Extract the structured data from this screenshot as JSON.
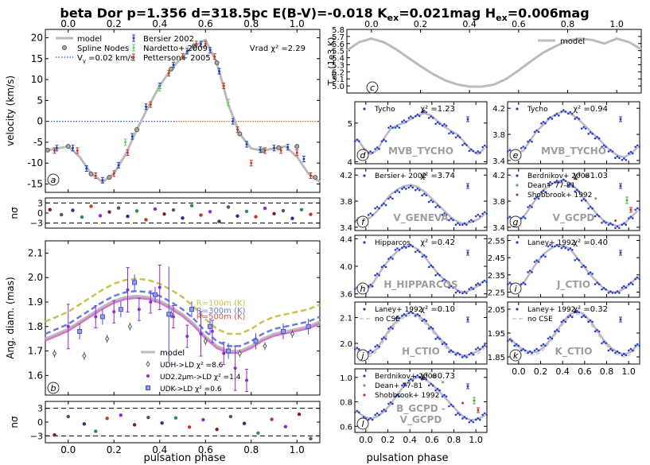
{
  "title": "beta Dor p=1.356 d=318.5pc E(B-V)=-0.018 K",
  "title_sub1": "ex",
  "title_mid": "=0.021mag H",
  "title_sub2": "ex",
  "title_end": "=0.006mag",
  "chart_data": [
    {
      "id": "a",
      "type": "scatter",
      "panel_letter": "a",
      "ylabel": "velocity (km/s)",
      "xlim": [
        -0.1,
        1.1
      ],
      "ylim": [
        -17,
        22
      ],
      "yticks": [
        -15,
        -10,
        -5,
        0,
        5,
        10,
        15,
        20
      ],
      "xticks_top": [
        0.0,
        0.2,
        0.4,
        0.6,
        0.8,
        1.0
      ],
      "xtick_labels_top": [
        "0.0",
        "0.2",
        "0.4",
        "0.6",
        "0.8",
        "1.0"
      ],
      "annotation": "Vrad χ² =2.29",
      "legend": [
        "model",
        "Spline Nodes",
        "V =0.02 km/s",
        "Bersier 2002",
        "Nardetto+ 2009",
        "Petterson+ 2005"
      ],
      "legend_subscript": "γ",
      "model_x": [
        -0.1,
        -0.05,
        0.0,
        0.05,
        0.1,
        0.15,
        0.2,
        0.25,
        0.3,
        0.35,
        0.4,
        0.45,
        0.5,
        0.55,
        0.6,
        0.65,
        0.7,
        0.75,
        0.8,
        0.85,
        0.9,
        0.95,
        1.0,
        1.05,
        1.1
      ],
      "model_y": [
        -7.0,
        -6.5,
        -6.0,
        -8.5,
        -12.5,
        -14.5,
        -12.5,
        -8.0,
        -2.0,
        3.5,
        8.5,
        12.5,
        15.5,
        18.0,
        19.5,
        14.0,
        4.0,
        -3.0,
        -6.5,
        -7.0,
        -6.5,
        -6.0,
        -8.5,
        -12.5,
        -14.5
      ],
      "nodes_x": [
        -0.09,
        0.0,
        0.1,
        0.18,
        0.3,
        0.45,
        0.55,
        0.65,
        0.75,
        0.85,
        0.92,
        1.0,
        1.08
      ],
      "nodes_y": [
        -6.9,
        -6.0,
        -12.6,
        -13.4,
        -2.0,
        12.5,
        18.0,
        14.0,
        -3.0,
        -7.0,
        -6.3,
        -6.0,
        -13.4
      ],
      "bersier_x": [
        -0.05,
        0.02,
        0.08,
        0.15,
        0.22,
        0.28,
        0.34,
        0.4,
        0.46,
        0.52,
        0.58,
        0.62,
        0.66,
        0.72,
        0.78,
        0.84,
        0.9,
        0.96,
        1.03
      ],
      "bersier_y": [
        -6.4,
        -6.4,
        -11.3,
        -14.1,
        -10.5,
        -3.6,
        3.5,
        8.5,
        13.5,
        16.8,
        18.5,
        17.0,
        12.0,
        0.0,
        -5.5,
        -6.8,
        -6.4,
        -6.2,
        -9.0
      ],
      "nardetto_x": [
        0.25,
        0.4,
        0.55,
        0.7
      ],
      "nardetto_y": [
        -5.0,
        8.0,
        17.8,
        4.5
      ],
      "petterson_x": [
        -0.06,
        0.04,
        0.12,
        0.2,
        0.26,
        0.36,
        0.44,
        0.5,
        0.56,
        0.6,
        0.64,
        0.68,
        0.74,
        0.8,
        0.86,
        0.93,
        1.0,
        1.06
      ],
      "petterson_y": [
        -7.0,
        -7.0,
        -13.0,
        -12.5,
        -7.5,
        4.0,
        11.5,
        15.5,
        18.5,
        18.5,
        15.5,
        8.5,
        -2.0,
        -10.0,
        -7.0,
        -7.0,
        -7.5,
        -13.0
      ]
    },
    {
      "id": "a_res",
      "type": "scatter",
      "ylabel": "nσ",
      "ylim": [
        -4.5,
        4.5
      ],
      "yticks": [
        -3,
        0,
        3
      ],
      "ytick_labels": [
        "−3",
        "0",
        "3"
      ],
      "x": [
        -0.08,
        -0.03,
        0.02,
        0.06,
        0.1,
        0.14,
        0.18,
        0.22,
        0.26,
        0.3,
        0.34,
        0.38,
        0.42,
        0.46,
        0.5,
        0.54,
        0.58,
        0.62,
        0.66,
        0.7,
        0.74,
        0.78,
        0.82,
        0.86,
        0.9,
        0.94,
        0.98,
        1.02,
        1.06
      ],
      "y": [
        1.0,
        -0.5,
        0.8,
        -1.2,
        2.0,
        -0.8,
        0.3,
        1.5,
        -1.0,
        0.6,
        -2.0,
        1.2,
        -0.3,
        0.9,
        -1.5,
        2.2,
        -0.6,
        0.4,
        -2.5,
        1.8,
        -0.9,
        0.5,
        -1.1,
        1.4,
        -0.2,
        0.7,
        -1.6,
        1.0,
        -0.4
      ]
    },
    {
      "id": "b",
      "type": "line",
      "panel_letter": "b",
      "ylabel": "Ang. diam. (mas)",
      "xlim": [
        -0.1,
        1.1
      ],
      "ylim": [
        1.52,
        2.15
      ],
      "yticks": [
        1.6,
        1.7,
        1.8,
        1.9,
        2.0,
        2.1
      ],
      "ytick_labels": [
        "1.6",
        "1.7",
        "1.8",
        "1.9",
        "2.0",
        "2.1"
      ],
      "legend": [
        "model",
        "UDH->LD χ² =8.6",
        "UD2.2μm->LD χ² =1.4",
        "UDK->LD χ² =0.6"
      ],
      "annotations": [
        "R=100m (K)",
        "R=300m (K)",
        "R=500m (K)"
      ],
      "model_x": [
        -0.1,
        -0.05,
        0.0,
        0.05,
        0.1,
        0.15,
        0.2,
        0.25,
        0.3,
        0.35,
        0.4,
        0.45,
        0.5,
        0.55,
        0.6,
        0.65,
        0.7,
        0.75,
        0.8,
        0.85,
        0.9,
        0.95,
        1.0,
        1.05,
        1.1
      ],
      "model_y": [
        1.75,
        1.77,
        1.79,
        1.82,
        1.85,
        1.88,
        1.905,
        1.92,
        1.925,
        1.92,
        1.905,
        1.88,
        1.85,
        1.81,
        1.76,
        1.72,
        1.7,
        1.7,
        1.72,
        1.75,
        1.77,
        1.78,
        1.79,
        1.8,
        1.82
      ],
      "pts_h_x": [
        -0.06,
        0.07,
        0.17,
        0.27,
        0.45,
        0.6,
        0.75,
        0.86,
        0.98
      ],
      "pts_h_y": [
        1.69,
        1.68,
        1.75,
        1.8,
        1.85,
        1.74,
        1.69,
        1.72,
        1.77
      ],
      "pts_22_x": [
        0.0,
        0.12,
        0.2,
        0.26,
        0.31,
        0.36,
        0.4,
        0.46,
        0.52,
        0.58,
        0.63,
        0.68,
        0.73,
        0.78
      ],
      "pts_22_y": [
        1.8,
        1.84,
        1.86,
        1.95,
        1.87,
        1.9,
        1.96,
        1.84,
        1.76,
        1.77,
        1.78,
        1.69,
        1.63,
        1.58
      ],
      "pts_k_x": [
        0.05,
        0.15,
        0.23,
        0.29,
        0.38,
        0.44,
        0.54,
        0.62,
        0.7,
        0.82,
        0.94,
        1.05
      ],
      "pts_k_y": [
        1.78,
        1.84,
        1.87,
        1.98,
        1.93,
        1.85,
        1.87,
        1.8,
        1.7,
        1.74,
        1.78,
        1.8
      ]
    },
    {
      "id": "b_res",
      "type": "scatter",
      "ylabel": "nσ",
      "ylim": [
        -4.5,
        4.5
      ],
      "yticks": [
        -3,
        0,
        3
      ],
      "ytick_labels": [
        "−3",
        "0",
        "3"
      ],
      "xticks": [
        0.0,
        0.2,
        0.4,
        0.6,
        0.8,
        1.0
      ],
      "xtick_labels": [
        "0.0",
        "0.2",
        "0.4",
        "0.6",
        "0.8",
        "1.0"
      ],
      "xlabel": "pulsation phase",
      "x": [
        -0.06,
        0.0,
        0.07,
        0.12,
        0.17,
        0.23,
        0.29,
        0.35,
        0.41,
        0.47,
        0.53,
        0.59,
        0.65,
        0.71,
        0.77,
        0.83,
        0.89,
        0.95,
        1.01,
        1.06
      ],
      "y": [
        -2.8,
        1.2,
        -0.4,
        -2.0,
        0.8,
        1.5,
        -0.6,
        1.0,
        -0.2,
        0.9,
        -1.1,
        0.5,
        -1.6,
        1.2,
        -0.3,
        -2.4,
        0.6,
        -1.0,
        1.7,
        -3.6
      ]
    },
    {
      "id": "c",
      "type": "line",
      "panel_letter": "c",
      "ylabel": "T",
      "ylabel_sub": "eff",
      "ylabel_tail": " (1e3 K)",
      "xlim": [
        -0.1,
        1.1
      ],
      "ylim": [
        4.9,
        5.8
      ],
      "yticks": [
        5.0,
        5.1,
        5.2,
        5.3,
        5.4,
        5.5,
        5.6,
        5.7,
        5.8
      ],
      "ytick_labels": [
        "5.0",
        "5.1",
        "5.2",
        "5.3",
        "5.4",
        "5.5",
        "5.6",
        "5.7",
        "5.8"
      ],
      "xticks_top": [
        0.0,
        0.2,
        0.4,
        0.6,
        0.8,
        1.0
      ],
      "xtick_labels_top": [
        "0.0",
        "0.2",
        "0.4",
        "0.6",
        "0.8",
        "1.0"
      ],
      "legend": [
        "model"
      ],
      "model_x": [
        -0.1,
        -0.05,
        0.0,
        0.05,
        0.1,
        0.15,
        0.2,
        0.25,
        0.3,
        0.35,
        0.4,
        0.45,
        0.5,
        0.55,
        0.6,
        0.65,
        0.7,
        0.75,
        0.8,
        0.85,
        0.9,
        0.95,
        1.0,
        1.05,
        1.1
      ],
      "model_y": [
        5.5,
        5.62,
        5.67,
        5.62,
        5.52,
        5.4,
        5.28,
        5.17,
        5.08,
        5.02,
        4.99,
        4.99,
        5.02,
        5.1,
        5.22,
        5.35,
        5.47,
        5.56,
        5.64,
        5.67,
        5.65,
        5.6,
        5.67,
        5.62,
        5.52
      ]
    },
    {
      "id": "d",
      "type": "scatter",
      "panel_letter": "d",
      "label": "MVB_TYCHO",
      "legend": [
        "Tycho"
      ],
      "chi2": "χ² =1.23",
      "ylim": [
        3.95,
        5.55
      ],
      "yticks": [
        4,
        5
      ],
      "ytick_labels": [
        "4",
        "5"
      ],
      "model_y": [
        4.6,
        4.35,
        4.2,
        4.3,
        4.6,
        4.85,
        4.95,
        5.0,
        5.1,
        5.2,
        5.25,
        5.2,
        5.05,
        4.9,
        4.8,
        4.7,
        4.5,
        4.3,
        4.2,
        4.35
      ],
      "pts_y": [
        4.55,
        4.3,
        4.25,
        4.35,
        4.55,
        4.9,
        4.9,
        5.05,
        5.15,
        5.2,
        5.3,
        5.15,
        5.0,
        4.95,
        4.75,
        4.65,
        4.45,
        4.3,
        4.25,
        4.4
      ]
    },
    {
      "id": "e",
      "type": "scatter",
      "panel_letter": "e",
      "label": "MVB_TYCHO",
      "legend": [
        "Tycho"
      ],
      "chi2": "χ² =0.94",
      "ylim": [
        3.35,
        4.3
      ],
      "yticks": [
        3.4,
        3.8,
        4.2
      ],
      "ytick_labels": [
        "3.4",
        "3.8",
        "4.2"
      ],
      "model_y": [
        3.55,
        3.5,
        3.55,
        3.7,
        3.85,
        3.95,
        4.05,
        4.12,
        4.15,
        4.12,
        4.05,
        3.95,
        3.85,
        3.75,
        3.65,
        3.55,
        3.48,
        3.45,
        3.5,
        3.6
      ],
      "pts_y": [
        3.55,
        3.48,
        3.6,
        3.7,
        3.85,
        3.98,
        4.05,
        4.1,
        4.16,
        4.13,
        4.05,
        3.9,
        3.82,
        3.75,
        3.62,
        3.55,
        3.45,
        3.42,
        3.52,
        3.62
      ]
    },
    {
      "id": "f",
      "type": "scatter",
      "panel_letter": "f",
      "label": "V_GENEVA",
      "legend": [
        "Bersier+ 2002"
      ],
      "chi2": "χ² =3.74",
      "ylim": [
        3.35,
        4.3
      ],
      "yticks": [
        3.4,
        3.8,
        4.2
      ],
      "ytick_labels": [
        "3.4",
        "3.8",
        "4.2"
      ],
      "model_y": [
        3.55,
        3.5,
        3.55,
        3.65,
        3.78,
        3.9,
        3.98,
        4.03,
        4.05,
        4.02,
        3.95,
        3.85,
        3.75,
        3.65,
        3.55,
        3.48,
        3.45,
        3.48,
        3.52,
        3.6
      ],
      "pts_y": [
        3.5,
        3.5,
        3.6,
        3.7,
        3.75,
        3.85,
        3.95,
        4.0,
        4.02,
        3.98,
        3.9,
        3.8,
        3.72,
        3.6,
        3.52,
        3.45,
        3.45,
        3.5,
        3.58,
        3.62
      ]
    },
    {
      "id": "g",
      "type": "scatter",
      "panel_letter": "g",
      "label": "V_GCPD",
      "legend": [
        "Berdnikov+ 2008",
        "Dean+ 77-81",
        "Shobbrook+ 1992"
      ],
      "chi2": "χ² =1.03",
      "ylim": [
        3.35,
        4.3
      ],
      "yticks": [
        3.4,
        3.8,
        4.2
      ],
      "ytick_labels": [
        "3.4",
        "3.8",
        "4.2"
      ],
      "model_y": [
        3.55,
        3.5,
        3.55,
        3.7,
        3.85,
        3.97,
        4.05,
        4.1,
        4.12,
        4.08,
        3.98,
        3.85,
        3.72,
        3.6,
        3.5,
        3.45,
        3.42,
        3.45,
        3.55,
        3.65
      ],
      "pts_y": [
        3.55,
        3.48,
        3.55,
        3.72,
        3.85,
        3.95,
        4.08,
        4.1,
        4.12,
        4.05,
        3.96,
        3.82,
        3.7,
        3.58,
        3.48,
        3.45,
        3.4,
        3.45,
        3.55,
        3.68
      ]
    },
    {
      "id": "h",
      "type": "scatter",
      "panel_letter": "h",
      "label": "H_HIPPARCOS",
      "legend": [
        "Hipparcos"
      ],
      "chi2": "χ² =0.42",
      "ylim": [
        3.55,
        4.45
      ],
      "yticks": [
        3.6,
        4.0,
        4.4
      ],
      "ytick_labels": [
        "3.6",
        "4.0",
        "4.4"
      ],
      "model_y": [
        3.7,
        3.65,
        3.7,
        3.85,
        4.0,
        4.12,
        4.22,
        4.28,
        4.3,
        4.25,
        4.15,
        4.02,
        3.9,
        3.8,
        3.72,
        3.65,
        3.62,
        3.66,
        3.72,
        3.8
      ],
      "pts_y": [
        3.68,
        3.62,
        3.72,
        3.88,
        4.0,
        4.12,
        4.25,
        4.28,
        4.3,
        4.22,
        4.15,
        4.0,
        3.88,
        3.8,
        3.7,
        3.63,
        3.62,
        3.68,
        3.74,
        3.78
      ]
    },
    {
      "id": "i",
      "type": "scatter",
      "panel_letter": "i",
      "label": "J_CTIO",
      "legend": [
        "Laney+ 1992"
      ],
      "chi2": "χ² =0.40",
      "ylim": [
        2.22,
        2.58
      ],
      "yticks": [
        2.25,
        2.35,
        2.45,
        2.55
      ],
      "ytick_labels": [
        "2.25",
        "2.35",
        "2.45",
        "2.55"
      ],
      "model_y": [
        2.3,
        2.28,
        2.3,
        2.36,
        2.42,
        2.47,
        2.5,
        2.52,
        2.52,
        2.5,
        2.45,
        2.4,
        2.35,
        2.31,
        2.27,
        2.25,
        2.25,
        2.27,
        2.3,
        2.34
      ],
      "pts_y": [
        2.3,
        2.27,
        2.3,
        2.37,
        2.43,
        2.46,
        2.52,
        2.52,
        2.51,
        2.5,
        2.44,
        2.4,
        2.36,
        2.3,
        2.27,
        2.25,
        2.25,
        2.28,
        2.3,
        2.33
      ]
    },
    {
      "id": "j",
      "type": "scatter",
      "panel_letter": "j",
      "label": "H_CTIO",
      "legend": [
        "Laney+ 1992",
        "no CSE"
      ],
      "chi2": "χ² =0.10",
      "ylim": [
        1.92,
        2.16
      ],
      "yticks": [
        2.0,
        2.1
      ],
      "ytick_labels": [
        "2.0",
        "2.1"
      ],
      "model_y": [
        1.98,
        1.96,
        1.96,
        1.98,
        2.02,
        2.06,
        2.09,
        2.11,
        2.12,
        2.11,
        2.09,
        2.06,
        2.03,
        2.0,
        1.97,
        1.96,
        1.95,
        1.96,
        1.97,
        1.99
      ],
      "pts_y": [
        1.98,
        1.96,
        1.97,
        1.99,
        2.02,
        2.06,
        2.1,
        2.11,
        2.12,
        2.11,
        2.09,
        2.06,
        2.02,
        2.0,
        1.97,
        1.96,
        1.95,
        1.96,
        1.98,
        1.99
      ]
    },
    {
      "id": "k",
      "type": "scatter",
      "panel_letter": "k",
      "label": "K_CTIO",
      "legend": [
        "Laney+ 1992",
        "no CSE"
      ],
      "chi2": "χ² =0.32",
      "ylim": [
        1.82,
        2.08
      ],
      "yticks": [
        1.85,
        1.95,
        2.05
      ],
      "ytick_labels": [
        "1.85",
        "1.95",
        "2.05"
      ],
      "xticks": [
        0.0,
        0.2,
        0.4,
        0.6,
        0.8,
        1.0
      ],
      "xtick_labels": [
        "0.0",
        "0.2",
        "0.4",
        "0.6",
        "0.8",
        "1.0"
      ],
      "model_y": [
        1.93,
        1.9,
        1.88,
        1.87,
        1.87,
        1.89,
        1.92,
        1.96,
        2.0,
        2.03,
        2.04,
        2.03,
        2.0,
        1.96,
        1.92,
        1.89,
        1.87,
        1.86,
        1.87,
        1.9
      ],
      "pts_y": [
        1.92,
        1.9,
        1.88,
        1.87,
        1.88,
        1.9,
        1.93,
        1.96,
        2.0,
        2.02,
        2.04,
        2.02,
        2.0,
        1.96,
        1.91,
        1.88,
        1.87,
        1.86,
        1.88,
        1.9
      ]
    },
    {
      "id": "l",
      "type": "scatter",
      "panel_letter": "l",
      "label": "B_GCPD -\nV_GCPD",
      "legend": [
        "Berdnikov+ 2008",
        "Dean+ 77-81",
        "Shobbrook+ 1992"
      ],
      "chi2": "χ² =0.73",
      "ylim": [
        0.55,
        1.07
      ],
      "yticks": [
        0.6,
        0.8,
        1.0
      ],
      "ytick_labels": [
        "0.6",
        "0.8",
        "1.0"
      ],
      "xticks": [
        0.0,
        0.2,
        0.4,
        0.6,
        0.8,
        1.0
      ],
      "xtick_labels": [
        "0.0",
        "0.2",
        "0.4",
        "0.6",
        "0.8",
        "1.0"
      ],
      "xlabel": "pulsation phase",
      "model_y": [
        0.72,
        0.68,
        0.66,
        0.68,
        0.72,
        0.78,
        0.86,
        0.93,
        0.98,
        1.0,
        0.99,
        0.95,
        0.9,
        0.84,
        0.78,
        0.72,
        0.67,
        0.65,
        0.66,
        0.69
      ],
      "pts_y": [
        0.72,
        0.67,
        0.66,
        0.7,
        0.73,
        0.79,
        0.85,
        0.94,
        0.98,
        1.01,
        0.99,
        0.94,
        0.9,
        0.85,
        0.77,
        0.7,
        0.67,
        0.64,
        0.66,
        0.7
      ]
    }
  ]
}
